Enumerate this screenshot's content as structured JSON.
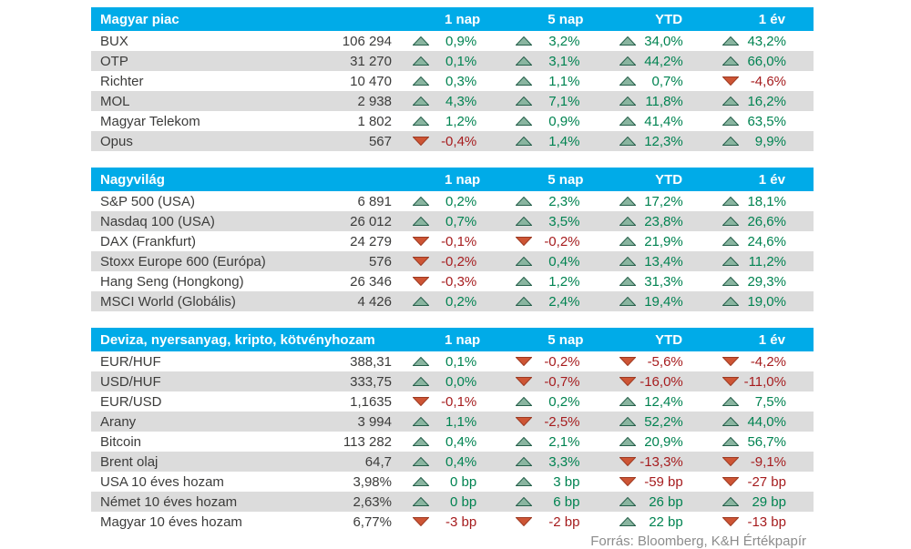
{
  "columns": [
    "1 nap",
    "5 nap",
    "YTD",
    "1 év"
  ],
  "footer": "Forrás: Bloomberg, K&H Értékpapír",
  "colors": {
    "header_bg": "#00abe8",
    "row_alt": "#dcdcdc",
    "text": "#3c3c3b",
    "positive_text": "#008351",
    "negative_text": "#a61c1e",
    "up_triangle_fill": "#8ab5a0",
    "up_triangle_stroke": "#26604b",
    "down_triangle_fill": "#cd5535",
    "down_triangle_stroke": "#9e3a22"
  },
  "sections": [
    {
      "id": "magyar-piac",
      "title": "Magyar piac",
      "rows": [
        {
          "name": "BUX",
          "value": "106 294",
          "changes": [
            [
              "up",
              "0,9%"
            ],
            [
              "up",
              "3,2%"
            ],
            [
              "up",
              "34,0%"
            ],
            [
              "up",
              "43,2%"
            ]
          ]
        },
        {
          "name": "OTP",
          "value": "31 270",
          "changes": [
            [
              "up",
              "0,1%"
            ],
            [
              "up",
              "3,1%"
            ],
            [
              "up",
              "44,2%"
            ],
            [
              "up",
              "66,0%"
            ]
          ]
        },
        {
          "name": "Richter",
          "value": "10 470",
          "changes": [
            [
              "up",
              "0,3%"
            ],
            [
              "up",
              "1,1%"
            ],
            [
              "up",
              "0,7%"
            ],
            [
              "down",
              "-4,6%"
            ]
          ]
        },
        {
          "name": "MOL",
          "value": "2 938",
          "changes": [
            [
              "up",
              "4,3%"
            ],
            [
              "up",
              "7,1%"
            ],
            [
              "up",
              "11,8%"
            ],
            [
              "up",
              "16,2%"
            ]
          ]
        },
        {
          "name": "Magyar Telekom",
          "value": "1 802",
          "changes": [
            [
              "up",
              "1,2%"
            ],
            [
              "up",
              "0,9%"
            ],
            [
              "up",
              "41,4%"
            ],
            [
              "up",
              "63,5%"
            ]
          ]
        },
        {
          "name": "Opus",
          "value": "567",
          "changes": [
            [
              "down",
              "-0,4%"
            ],
            [
              "up",
              "1,4%"
            ],
            [
              "up",
              "12,3%"
            ],
            [
              "up",
              "9,9%"
            ]
          ]
        }
      ]
    },
    {
      "id": "nagyvilag",
      "title": "Nagyvilág",
      "rows": [
        {
          "name": "S&P 500 (USA)",
          "value": "6 891",
          "changes": [
            [
              "up",
              "0,2%"
            ],
            [
              "up",
              "2,3%"
            ],
            [
              "up",
              "17,2%"
            ],
            [
              "up",
              "18,1%"
            ]
          ]
        },
        {
          "name": "Nasdaq 100 (USA)",
          "value": "26 012",
          "changes": [
            [
              "up",
              "0,7%"
            ],
            [
              "up",
              "3,5%"
            ],
            [
              "up",
              "23,8%"
            ],
            [
              "up",
              "26,6%"
            ]
          ]
        },
        {
          "name": "DAX (Frankfurt)",
          "value": "24 279",
          "changes": [
            [
              "down",
              "-0,1%"
            ],
            [
              "down",
              "-0,2%"
            ],
            [
              "up",
              "21,9%"
            ],
            [
              "up",
              "24,6%"
            ]
          ]
        },
        {
          "name": "Stoxx Europe 600 (Európa)",
          "value": "576",
          "changes": [
            [
              "down",
              "-0,2%"
            ],
            [
              "up",
              "0,4%"
            ],
            [
              "up",
              "13,4%"
            ],
            [
              "up",
              "11,2%"
            ]
          ]
        },
        {
          "name": "Hang Seng (Hongkong)",
          "value": "26 346",
          "changes": [
            [
              "down",
              "-0,3%"
            ],
            [
              "up",
              "1,2%"
            ],
            [
              "up",
              "31,3%"
            ],
            [
              "up",
              "29,3%"
            ]
          ]
        },
        {
          "name": "MSCI World (Globális)",
          "value": "4 426",
          "changes": [
            [
              "up",
              "0,2%"
            ],
            [
              "up",
              "2,4%"
            ],
            [
              "up",
              "19,4%"
            ],
            [
              "up",
              "19,0%"
            ]
          ]
        }
      ]
    },
    {
      "id": "deviza-nyersanyag-kripto-kotvenyhozam",
      "title": "Deviza, nyersanyag, kripto, kötvényhozam",
      "rows": [
        {
          "name": "EUR/HUF",
          "value": "388,31",
          "changes": [
            [
              "up",
              "0,1%"
            ],
            [
              "down",
              "-0,2%"
            ],
            [
              "down",
              "-5,6%"
            ],
            [
              "down",
              "-4,2%"
            ]
          ]
        },
        {
          "name": "USD/HUF",
          "value": "333,75",
          "changes": [
            [
              "up",
              "0,0%"
            ],
            [
              "down",
              "-0,7%"
            ],
            [
              "down",
              "-16,0%"
            ],
            [
              "down",
              "-11,0%"
            ]
          ]
        },
        {
          "name": "EUR/USD",
          "value": "1,1635",
          "changes": [
            [
              "down",
              "-0,1%"
            ],
            [
              "up",
              "0,2%"
            ],
            [
              "up",
              "12,4%"
            ],
            [
              "up",
              "7,5%"
            ]
          ]
        },
        {
          "name": "Arany",
          "value": "3 994",
          "changes": [
            [
              "up",
              "1,1%"
            ],
            [
              "down",
              "-2,5%"
            ],
            [
              "up",
              "52,2%"
            ],
            [
              "up",
              "44,0%"
            ]
          ]
        },
        {
          "name": "Bitcoin",
          "value": "113 282",
          "changes": [
            [
              "up",
              "0,4%"
            ],
            [
              "up",
              "2,1%"
            ],
            [
              "up",
              "20,9%"
            ],
            [
              "up",
              "56,7%"
            ]
          ]
        },
        {
          "name": "Brent olaj",
          "value": "64,7",
          "changes": [
            [
              "up",
              "0,4%"
            ],
            [
              "up",
              "3,3%"
            ],
            [
              "down",
              "-13,3%"
            ],
            [
              "down",
              "-9,1%"
            ]
          ]
        },
        {
          "name": "USA 10 éves hozam",
          "value": "3,98%",
          "changes": [
            [
              "up",
              "0 bp"
            ],
            [
              "up",
              "3 bp"
            ],
            [
              "down",
              "-59 bp"
            ],
            [
              "down",
              "-27 bp"
            ]
          ]
        },
        {
          "name": "Német 10 éves hozam",
          "value": "2,63%",
          "changes": [
            [
              "up",
              "0 bp"
            ],
            [
              "up",
              "6 bp"
            ],
            [
              "up",
              "26 bp"
            ],
            [
              "up",
              "29 bp"
            ]
          ]
        },
        {
          "name": "Magyar 10 éves hozam",
          "value": "6,77%",
          "changes": [
            [
              "down",
              "-3 bp"
            ],
            [
              "down",
              "-2 bp"
            ],
            [
              "up",
              "22 bp"
            ],
            [
              "down",
              "-13 bp"
            ]
          ]
        }
      ]
    }
  ]
}
